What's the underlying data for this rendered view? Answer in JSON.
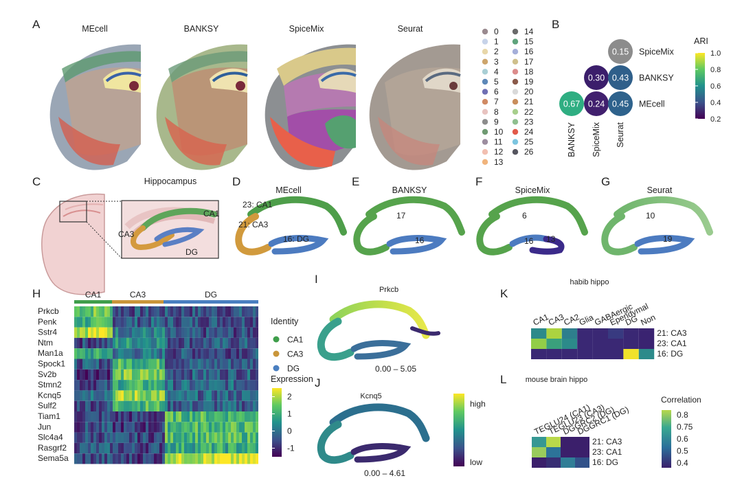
{
  "panels": {
    "A": {
      "label": "A",
      "methods": [
        "MEcell",
        "BANKSY",
        "SpiceMix",
        "Seurat"
      ],
      "clusters": [
        "0",
        "1",
        "2",
        "3",
        "4",
        "5",
        "6",
        "7",
        "8",
        "9",
        "10",
        "11",
        "12",
        "13",
        "14",
        "15",
        "16",
        "17",
        "18",
        "19",
        "20",
        "21",
        "22",
        "23",
        "24",
        "25",
        "26"
      ],
      "cluster_colors": [
        "#9a8a8f",
        "#c7d3e9",
        "#e8d7a9",
        "#cda56c",
        "#a9cfd5",
        "#5d88b8",
        "#6f6fb3",
        "#d08a64",
        "#e8c3c0",
        "#8c8c8c",
        "#6f9a72",
        "#9c8d9f",
        "#f2bfb1",
        "#f1b47c",
        "#6a6a6a",
        "#5fa37c",
        "#a5afd9",
        "#cfc08c",
        "#dc8c8c",
        "#8a5a4a",
        "#d9d9d9",
        "#c98e5c",
        "#a7cf8c",
        "#8fbf8f",
        "#e25a4a",
        "#7cc5e0",
        "#55555f"
      ]
    },
    "B": {
      "label": "B",
      "colorbar_title": "ARI",
      "colorbar_ticks": [
        "1.0",
        "0.8",
        "0.6",
        "0.4",
        "0.2"
      ],
      "rows": [
        "SpiceMix",
        "BANKSY",
        "MEcell"
      ],
      "cols": [
        "BANKSY",
        "SpiceMix",
        "Seurat"
      ],
      "values": [
        {
          "row": "SpiceMix",
          "col": "Seurat",
          "value": "0.15",
          "color": "#8c8c8c"
        },
        {
          "row": "BANKSY",
          "col": "SpiceMix",
          "value": "0.30",
          "color": "#3b1e6b"
        },
        {
          "row": "BANKSY",
          "col": "Seurat",
          "value": "0.43",
          "color": "#2f5f8a"
        },
        {
          "row": "MEcell",
          "col": "BANKSY",
          "value": "0.67",
          "color": "#2fae82"
        },
        {
          "row": "MEcell",
          "col": "SpiceMix",
          "value": "0.24",
          "color": "#41206e"
        },
        {
          "row": "MEcell",
          "col": "Seurat",
          "value": "0.45",
          "color": "#2e628c"
        }
      ]
    },
    "C": {
      "label": "C",
      "title": "Hippocampus",
      "regions": [
        "CA1",
        "CA3",
        "DG"
      ]
    },
    "D": {
      "label": "D",
      "title": "MEcell",
      "labels": [
        "23: CA1",
        "21: CA3",
        "16: DG"
      ]
    },
    "E": {
      "label": "E",
      "title": "BANKSY",
      "labels": [
        "17",
        "16"
      ]
    },
    "F": {
      "label": "F",
      "title": "SpiceMix",
      "labels": [
        "6",
        "16",
        "13"
      ]
    },
    "G": {
      "label": "G",
      "title": "Seurat",
      "labels": [
        "10",
        "19"
      ]
    },
    "H": {
      "label": "H",
      "groups": [
        "CA1",
        "CA3",
        "DG"
      ],
      "group_colors": [
        "#3f9e4b",
        "#c9963a",
        "#4a7fc0"
      ],
      "genes": [
        "Prkcb",
        "Penk",
        "Sstr4",
        "Ntm",
        "Man1a",
        "Spock1",
        "Sv2b",
        "Stmn2",
        "Kcnq5",
        "Sulf2",
        "Tiam1",
        "Jun",
        "Slc4a4",
        "Rasgrf2",
        "Sema5a"
      ],
      "identity_title": "Identity",
      "identity_items": [
        "CA1",
        "CA3",
        "DG"
      ],
      "expression_title": "Expression",
      "expression_ticks": [
        "2",
        "1",
        "0",
        "-1"
      ]
    },
    "I": {
      "label": "I",
      "title": "Prkcb",
      "range": "0.00 – 5.05"
    },
    "J": {
      "label": "J",
      "title": "Kcnq5",
      "range": "0.00 – 4.61",
      "legend_high": "high",
      "legend_low": "low"
    },
    "K": {
      "label": "K",
      "title": "habib hippo",
      "cols": [
        "CA1",
        "CA3",
        "CA2",
        "Glia",
        "GABAergic",
        "Ependymal",
        "DG",
        "Non"
      ],
      "rows": [
        "21: CA3",
        "23: CA1",
        "16: DG"
      ],
      "values": [
        [
          0.45,
          0.85,
          0.4,
          0.05,
          0.05,
          0.12,
          0.05,
          0.03
        ],
        [
          0.8,
          0.55,
          0.45,
          0.05,
          0.05,
          0.05,
          0.05,
          0.03
        ],
        [
          0.05,
          0.05,
          0.05,
          0.05,
          0.05,
          0.05,
          0.98,
          0.45
        ]
      ]
    },
    "L": {
      "label": "L",
      "title": "mouse brain hippo",
      "cols": [
        "TEGLU24 (CA1)",
        "TEGLU23 (CA3)",
        "DGGRC2 (DG)",
        "DGGRC1 (DG)"
      ],
      "rows": [
        "21: CA3",
        "23: CA1",
        "16: DG"
      ],
      "colorbar_title": "Correlation",
      "colorbar_ticks": [
        "0.8",
        "0.75",
        "0.6",
        "0.5",
        "0.4"
      ],
      "values": [
        [
          0.62,
          0.82,
          0.35,
          0.35
        ],
        [
          0.78,
          0.52,
          0.35,
          0.35
        ],
        [
          0.35,
          0.38,
          0.55,
          0.45
        ]
      ]
    }
  }
}
